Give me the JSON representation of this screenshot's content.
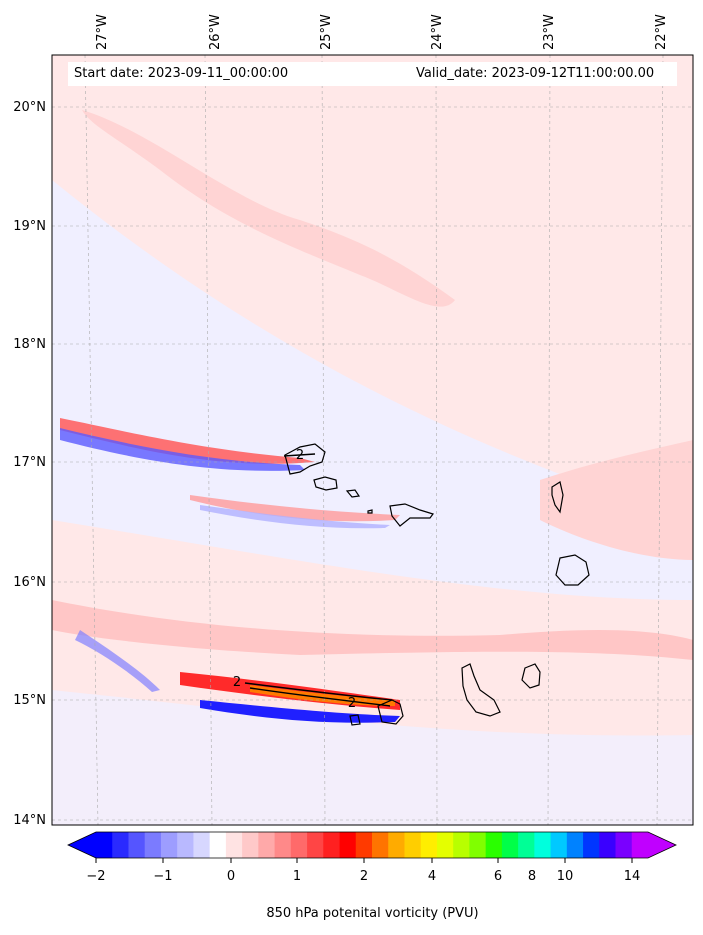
{
  "header": {
    "start_date": "Start date: 2023-09-11_00:00:00",
    "valid_date": "Valid_date: 2023-09-12T11:00:00.00"
  },
  "map": {
    "lon_ticks": [
      "27°W",
      "26°W",
      "25°W",
      "24°W",
      "23°W",
      "22°W"
    ],
    "lat_ticks": [
      "20°N",
      "19°N",
      "18°N",
      "17°N",
      "16°N",
      "15°N",
      "14°N"
    ],
    "contour_labels": [
      "2",
      "2",
      "2"
    ]
  },
  "colorbar": {
    "label": "850 hPa potenital vorticity (PVU)",
    "tick_labels": [
      "−2",
      "−1",
      "0",
      "1",
      "2",
      "4",
      "6",
      "8",
      "10",
      "14"
    ],
    "colors": [
      "#0000ff",
      "#2a2aff",
      "#5555ff",
      "#7b7bff",
      "#9d9dff",
      "#b9b9ff",
      "#d7d7ff",
      "#ffffff",
      "#ffe3e3",
      "#ffc9c9",
      "#ffa9a9",
      "#ff8989",
      "#ff6a6a",
      "#ff4545",
      "#ff2020",
      "#ff0000",
      "#ff3a00",
      "#ff7400",
      "#ffab00",
      "#ffce00",
      "#ffee00",
      "#e4ff00",
      "#b8ff00",
      "#80ff00",
      "#2aff00",
      "#00ff48",
      "#00ff96",
      "#00ffdd",
      "#00c9ff",
      "#0082ff",
      "#0036ff",
      "#3a00ff",
      "#7a00ff",
      "#c000ff"
    ]
  }
}
